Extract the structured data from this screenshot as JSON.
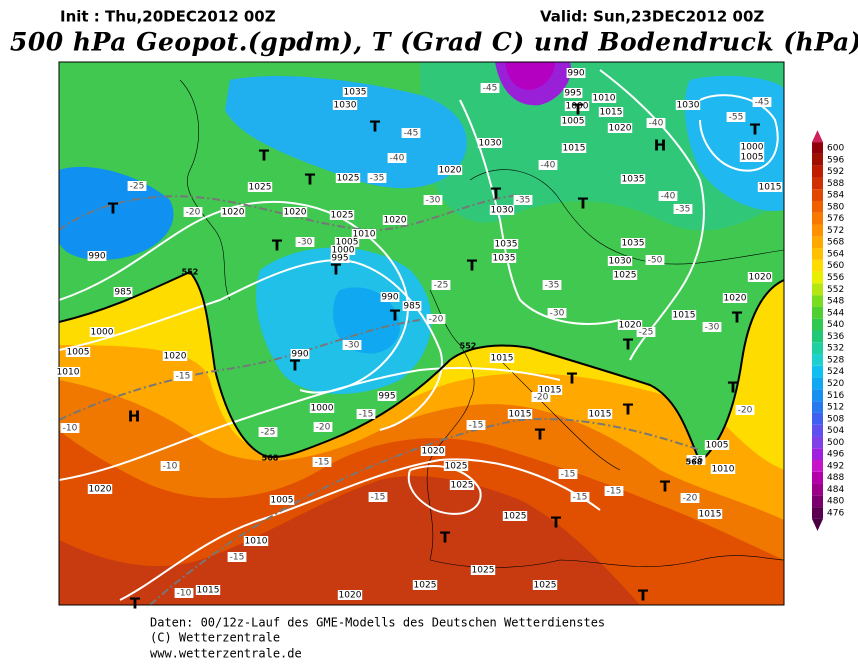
{
  "header": {
    "init": "Init : Thu,20DEC2012 00Z",
    "valid": "Valid: Sun,23DEC2012 00Z",
    "title": "500 hPa Geopot.(gpdm), T (Grad C) und Bodendruck (hPa)"
  },
  "scale": {
    "levels": [
      476,
      480,
      484,
      488,
      492,
      496,
      500,
      504,
      508,
      512,
      516,
      520,
      524,
      528,
      532,
      536,
      540,
      544,
      548,
      552,
      556,
      560,
      564,
      568,
      572,
      576,
      580,
      584,
      588,
      592,
      596,
      600
    ],
    "colors": [
      "#5a0050",
      "#7a006e",
      "#9a008a",
      "#b400a8",
      "#c814c8",
      "#a020e0",
      "#8040e8",
      "#6050f0",
      "#4060f0",
      "#2878f0",
      "#1890f0",
      "#10a8f0",
      "#10c0f0",
      "#20d0d0",
      "#20d0a0",
      "#20c878",
      "#30c850",
      "#50d030",
      "#78dc20",
      "#b4e614",
      "#e6f000",
      "#ffdc00",
      "#ffc000",
      "#ffa800",
      "#ff9000",
      "#f87800",
      "#f06000",
      "#e04800",
      "#d03000",
      "#c01c00",
      "#a01000",
      "#900008"
    ]
  },
  "map": {
    "pressure_labels": [
      "1030",
      "1035",
      "1025",
      "1025",
      "1020",
      "1020",
      "1025",
      "1020",
      "1010",
      "1005",
      "1000",
      "995",
      "990",
      "985",
      "1000",
      "1005",
      "1010",
      "1020",
      "990",
      "990",
      "985",
      "1000",
      "995",
      "1020",
      "1025",
      "1025",
      "1025",
      "1025",
      "1025",
      "1025",
      "1020",
      "1015",
      "1010",
      "1005",
      "1020",
      "1030",
      "1035",
      "1035",
      "1030",
      "1025",
      "1020",
      "1015",
      "1020",
      "1020",
      "1015",
      "1005",
      "1000",
      "1015",
      "1015",
      "1015",
      "1015",
      "1005",
      "1010",
      "1015",
      "1035",
      "1035",
      "1030",
      "995",
      "1000",
      "1005",
      "1010",
      "1015",
      "1020",
      "1030",
      "1015",
      "990",
      "1020"
    ],
    "temperature_labels": [
      "-45",
      "-45",
      "-40",
      "-35",
      "-30",
      "-25",
      "-20",
      "-30",
      "-25",
      "-20",
      "-30",
      "-15",
      "-10",
      "-15",
      "-20",
      "-25",
      "-15",
      "-10",
      "-15",
      "-15",
      "-10",
      "-15",
      "-20",
      "-15",
      "-15",
      "-15",
      "-20",
      "-20",
      "-25",
      "-30",
      "-25",
      "-35",
      "-40",
      "-40",
      "-45",
      "-55",
      "-50",
      "-35",
      "-30",
      "-40",
      "-35"
    ],
    "centers": [
      "H",
      "H",
      "T",
      "T",
      "T",
      "T",
      "T",
      "T",
      "T",
      "T",
      "T",
      "T",
      "T",
      "T",
      "T",
      "T",
      "T",
      "T",
      "T",
      "T",
      "T",
      "T",
      "T",
      "T",
      "T",
      "T"
    ],
    "height_labels": [
      "552",
      "568",
      "552",
      "568"
    ]
  },
  "footer": {
    "line1": "Daten: 00/12z-Lauf des GME-Modells des Deutschen Wetterdienstes",
    "line2": "(C) Wetterzentrale",
    "line3": "www.wetterzentrale.de"
  }
}
